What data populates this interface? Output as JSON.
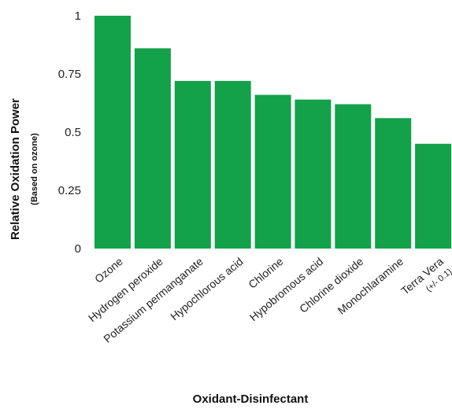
{
  "colors": {
    "bar": "#13a14a",
    "text": "#222222"
  },
  "chart_data": {
    "type": "bar",
    "categories": [
      "Ozone",
      "Hydrogen peroxide",
      "Potassium permanganate",
      "Hypochlorous acid",
      "Chlorine",
      "Hypobromous acid",
      "Chlorine dioxide",
      "Monochlaramine",
      "Terra Vera"
    ],
    "category_notes": [
      "",
      "",
      "",
      "",
      "",
      "",
      "",
      "",
      "(+/- 0.1)"
    ],
    "values": [
      1.0,
      0.86,
      0.72,
      0.72,
      0.66,
      0.64,
      0.62,
      0.56,
      0.45
    ],
    "ylim": [
      0,
      1
    ],
    "yticks": [
      0,
      0.25,
      0.5,
      0.75,
      1
    ],
    "ytick_labels": [
      "0",
      "0.25",
      "0.5",
      "0.75",
      "1"
    ],
    "xlabel": "Oxidant-Disinfectant",
    "ylabel": "Relative Oxidation Power",
    "ylabel_sub": "(Based on ozone)",
    "grid": false,
    "legend": "none"
  }
}
